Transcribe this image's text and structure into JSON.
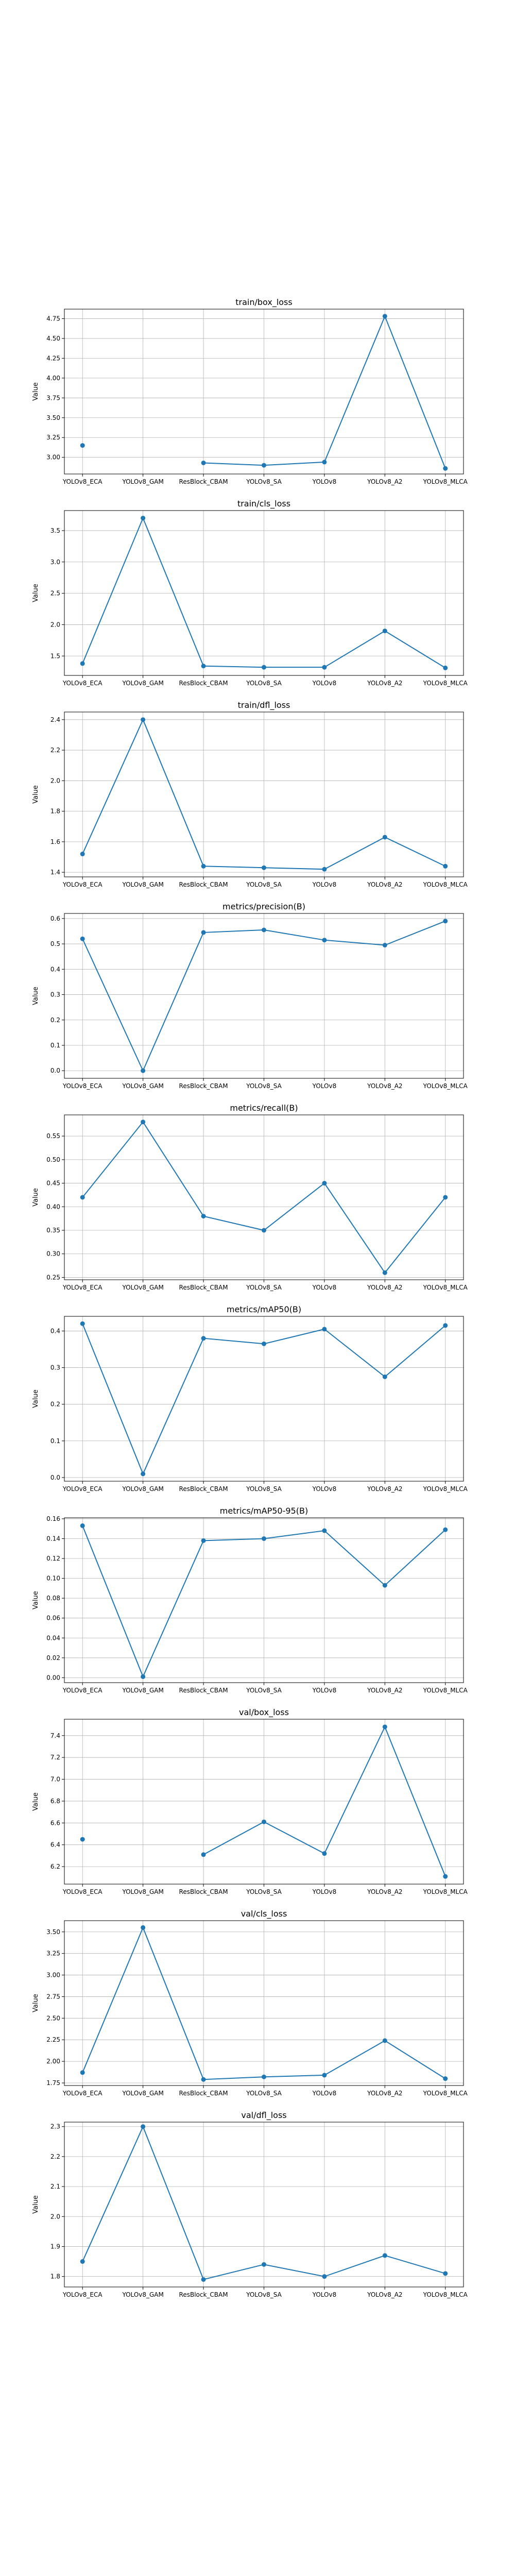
{
  "chart_data": [
    {
      "type": "line",
      "title": "train/box_loss",
      "ylabel": "Value",
      "categories": [
        "YOLOv8_ECA",
        "YOLOv8_GAM",
        "ResBlock_CBAM",
        "YOLOv8_SA",
        "YOLOv8",
        "YOLOv8_A2",
        "YOLOv8_MLCA"
      ],
      "values": [
        3.15,
        null,
        2.93,
        2.9,
        2.94,
        4.78,
        2.86
      ],
      "ylim": [
        2.79,
        4.87
      ],
      "yticks": [
        3.0,
        3.25,
        3.5,
        3.75,
        4.0,
        4.25,
        4.5,
        4.75
      ],
      "ytick_labels": [
        "3.00",
        "3.25",
        "3.50",
        "3.75",
        "4.00",
        "4.25",
        "4.50",
        "4.75"
      ]
    },
    {
      "type": "line",
      "title": "train/cls_loss",
      "ylabel": "Value",
      "categories": [
        "YOLOv8_ECA",
        "YOLOv8_GAM",
        "ResBlock_CBAM",
        "YOLOv8_SA",
        "YOLOv8",
        "YOLOv8_A2",
        "YOLOv8_MLCA"
      ],
      "values": [
        1.38,
        3.7,
        1.34,
        1.32,
        1.32,
        1.9,
        1.31
      ],
      "ylim": [
        1.19,
        3.82
      ],
      "yticks": [
        1.5,
        2.0,
        2.5,
        3.0,
        3.5
      ],
      "ytick_labels": [
        "1.5",
        "2.0",
        "2.5",
        "3.0",
        "3.5"
      ]
    },
    {
      "type": "line",
      "title": "train/dfl_loss",
      "ylabel": "Value",
      "categories": [
        "YOLOv8_ECA",
        "YOLOv8_GAM",
        "ResBlock_CBAM",
        "YOLOv8_SA",
        "YOLOv8",
        "YOLOv8_A2",
        "YOLOv8_MLCA"
      ],
      "values": [
        1.52,
        2.4,
        1.44,
        1.43,
        1.42,
        1.63,
        1.44
      ],
      "ylim": [
        1.37,
        2.45
      ],
      "yticks": [
        1.4,
        1.6,
        1.8,
        2.0,
        2.2,
        2.4
      ],
      "ytick_labels": [
        "1.4",
        "1.6",
        "1.8",
        "2.0",
        "2.2",
        "2.4"
      ]
    },
    {
      "type": "line",
      "title": "metrics/precision(B)",
      "ylabel": "Value",
      "categories": [
        "YOLOv8_ECA",
        "YOLOv8_GAM",
        "ResBlock_CBAM",
        "YOLOv8_SA",
        "YOLOv8",
        "YOLOv8_A2",
        "YOLOv8_MLCA"
      ],
      "values": [
        0.52,
        0.0,
        0.545,
        0.555,
        0.515,
        0.495,
        0.59
      ],
      "ylim": [
        -0.03,
        0.62
      ],
      "yticks": [
        0.0,
        0.1,
        0.2,
        0.3,
        0.4,
        0.5,
        0.6
      ],
      "ytick_labels": [
        "0.0",
        "0.1",
        "0.2",
        "0.3",
        "0.4",
        "0.5",
        "0.6"
      ]
    },
    {
      "type": "line",
      "title": "metrics/recall(B)",
      "ylabel": "Value",
      "categories": [
        "YOLOv8_ECA",
        "YOLOv8_GAM",
        "ResBlock_CBAM",
        "YOLOv8_SA",
        "YOLOv8",
        "YOLOv8_A2",
        "YOLOv8_MLCA"
      ],
      "values": [
        0.42,
        0.58,
        0.38,
        0.35,
        0.45,
        0.26,
        0.42
      ],
      "ylim": [
        0.245,
        0.595
      ],
      "yticks": [
        0.25,
        0.3,
        0.35,
        0.4,
        0.45,
        0.5,
        0.55
      ],
      "ytick_labels": [
        "0.25",
        "0.30",
        "0.35",
        "0.40",
        "0.45",
        "0.50",
        "0.55"
      ]
    },
    {
      "type": "line",
      "title": "metrics/mAP50(B)",
      "ylabel": "Value",
      "categories": [
        "YOLOv8_ECA",
        "YOLOv8_GAM",
        "ResBlock_CBAM",
        "YOLOv8_SA",
        "YOLOv8",
        "YOLOv8_A2",
        "YOLOv8_MLCA"
      ],
      "values": [
        0.42,
        0.01,
        0.38,
        0.365,
        0.405,
        0.275,
        0.415
      ],
      "ylim": [
        -0.01,
        0.44
      ],
      "yticks": [
        0.0,
        0.1,
        0.2,
        0.3,
        0.4
      ],
      "ytick_labels": [
        "0.0",
        "0.1",
        "0.2",
        "0.3",
        "0.4"
      ]
    },
    {
      "type": "line",
      "title": "metrics/mAP50-95(B)",
      "ylabel": "Value",
      "categories": [
        "YOLOv8_ECA",
        "YOLOv8_GAM",
        "ResBlock_CBAM",
        "YOLOv8_SA",
        "YOLOv8",
        "YOLOv8_A2",
        "YOLOv8_MLCA"
      ],
      "values": [
        0.153,
        0.001,
        0.138,
        0.14,
        0.148,
        0.093,
        0.149
      ],
      "ylim": [
        -0.005,
        0.161
      ],
      "yticks": [
        0.0,
        0.02,
        0.04,
        0.06,
        0.08,
        0.1,
        0.12,
        0.14,
        0.16
      ],
      "ytick_labels": [
        "0.00",
        "0.02",
        "0.04",
        "0.06",
        "0.08",
        "0.10",
        "0.12",
        "0.14",
        "0.16"
      ]
    },
    {
      "type": "line",
      "title": "val/box_loss",
      "ylabel": "Value",
      "categories": [
        "YOLOv8_ECA",
        "YOLOv8_GAM",
        "ResBlock_CBAM",
        "YOLOv8_SA",
        "YOLOv8",
        "YOLOv8_A2",
        "YOLOv8_MLCA"
      ],
      "values": [
        6.45,
        null,
        6.31,
        6.61,
        6.32,
        7.48,
        6.11
      ],
      "ylim": [
        6.04,
        7.55
      ],
      "yticks": [
        6.2,
        6.4,
        6.6,
        6.8,
        7.0,
        7.2,
        7.4
      ],
      "ytick_labels": [
        "6.2",
        "6.4",
        "6.6",
        "6.8",
        "7.0",
        "7.2",
        "7.4"
      ]
    },
    {
      "type": "line",
      "title": "val/cls_loss",
      "ylabel": "Value",
      "categories": [
        "YOLOv8_ECA",
        "YOLOv8_GAM",
        "ResBlock_CBAM",
        "YOLOv8_SA",
        "YOLOv8",
        "YOLOv8_A2",
        "YOLOv8_MLCA"
      ],
      "values": [
        1.87,
        3.55,
        1.79,
        1.82,
        1.84,
        2.24,
        1.8
      ],
      "ylim": [
        1.72,
        3.63
      ],
      "yticks": [
        1.75,
        2.0,
        2.25,
        2.5,
        2.75,
        3.0,
        3.25,
        3.5
      ],
      "ytick_labels": [
        "1.75",
        "2.00",
        "2.25",
        "2.50",
        "2.75",
        "3.00",
        "3.25",
        "3.50"
      ]
    },
    {
      "type": "line",
      "title": "val/dfl_loss",
      "ylabel": "Value",
      "categories": [
        "YOLOv8_ECA",
        "YOLOv8_GAM",
        "ResBlock_CBAM",
        "YOLOv8_SA",
        "YOLOv8",
        "YOLOv8_A2",
        "YOLOv8_MLCA"
      ],
      "values": [
        1.85,
        2.3,
        1.79,
        1.84,
        1.8,
        1.87,
        1.81
      ],
      "ylim": [
        1.765,
        2.315
      ],
      "yticks": [
        1.8,
        1.9,
        2.0,
        2.1,
        2.2,
        2.3
      ],
      "ytick_labels": [
        "1.8",
        "1.9",
        "2.0",
        "2.1",
        "2.2",
        "2.3"
      ]
    }
  ],
  "style": {
    "line_color": "#1f77b4",
    "grid_color": "#b0b0b0",
    "axis_color": "#000000",
    "grid": true
  }
}
